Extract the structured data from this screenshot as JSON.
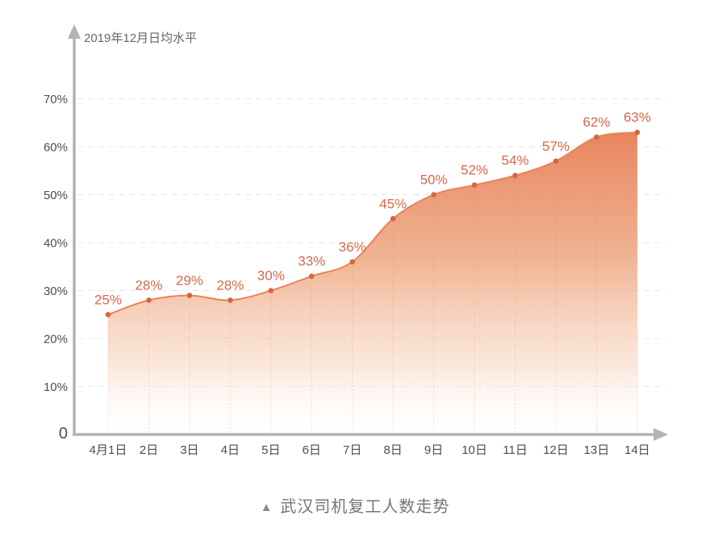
{
  "chart_data": {
    "type": "area",
    "title": "武汉司机复工人数走势",
    "ylabel": "2019年12月日均水平",
    "categories": [
      "4月1日",
      "2日",
      "3日",
      "4日",
      "5日",
      "6日",
      "7日",
      "8日",
      "9日",
      "10日",
      "11日",
      "12日",
      "13日",
      "14日"
    ],
    "values": [
      25,
      28,
      29,
      28,
      30,
      33,
      36,
      45,
      50,
      52,
      54,
      57,
      62,
      63
    ],
    "value_labels": [
      "25%",
      "28%",
      "29%",
      "28%",
      "30%",
      "33%",
      "36%",
      "45%",
      "50%",
      "52%",
      "54%",
      "57%",
      "62%",
      "63%"
    ],
    "unit": "%",
    "ylim": [
      0,
      70
    ],
    "yticks": [
      {
        "label": "70%",
        "value": 70
      },
      {
        "label": "60%",
        "value": 60
      },
      {
        "label": "50%",
        "value": 50
      },
      {
        "label": "40%",
        "value": 40
      },
      {
        "label": "30%",
        "value": 30
      },
      {
        "label": "20%",
        "value": 20
      },
      {
        "label": "10%",
        "value": 10
      },
      {
        "label": "0",
        "value": 0
      }
    ],
    "grid": "dashed-horizontal",
    "legend": "none",
    "colors": {
      "fill_top": "#E8815A",
      "fill_mid": "#EDA67F",
      "fill_low": "#F8D6C2",
      "fill_bottom": "#FFFFFF",
      "line": "#E8835B",
      "dot": "#D8653C",
      "data_label": "#D5694B",
      "axis": "#B3B3B3",
      "tick_text": "#4D4D4D",
      "gridline": "#E5E5E5",
      "dropline": "#DB7C59",
      "caption_text": "#757575"
    }
  },
  "caption": {
    "marker": "▲",
    "text": "武汉司机复工人数走势"
  }
}
